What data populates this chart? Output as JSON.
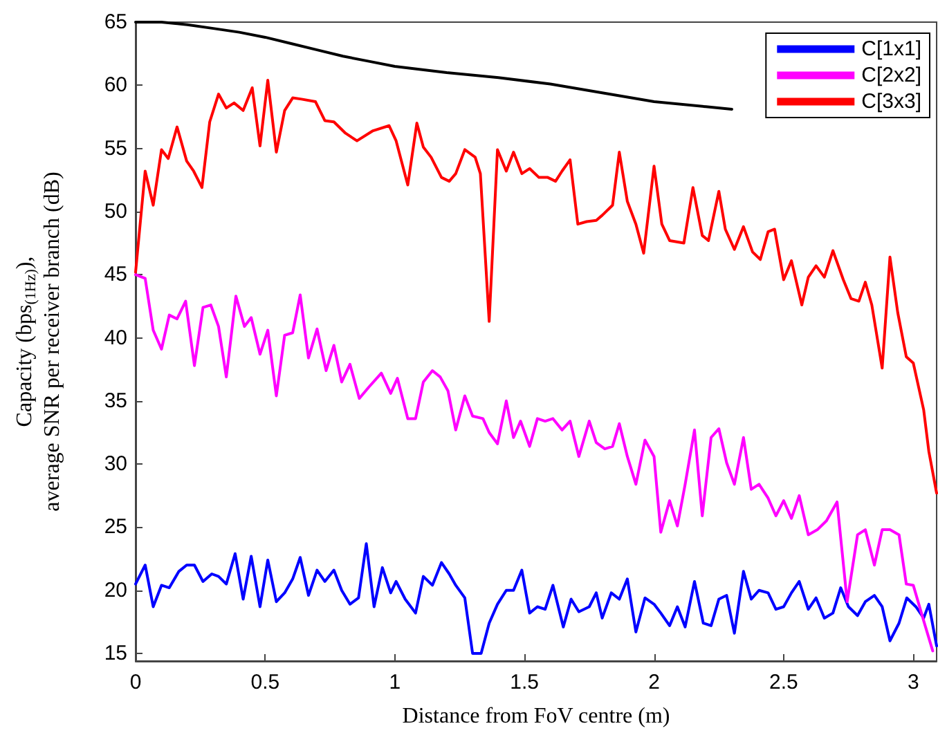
{
  "chart_data": {
    "type": "line",
    "xlabel": "Distance from FoV centre (m)",
    "ylabel": "Capacity (bps$_{(1Hz)}$),\naverage SNR per receiver branch (dB)",
    "xlim": [
      0,
      3.09
    ],
    "xticks": [
      0,
      0.5,
      1,
      1.5,
      2,
      2.5,
      3
    ],
    "ylim": [
      14.4,
      65
    ],
    "yticks": [
      15,
      20,
      25,
      30,
      35,
      40,
      45,
      50,
      55,
      60,
      65
    ],
    "grid": false,
    "legend": "top right",
    "marker": "none",
    "line_style": "solid",
    "series": [
      {
        "name": "C[1x1]",
        "color": "#0000ff",
        "x": [
          0,
          0.037,
          0.068,
          0.1,
          0.13,
          0.167,
          0.197,
          0.227,
          0.26,
          0.294,
          0.32,
          0.35,
          0.384,
          0.415,
          0.446,
          0.48,
          0.51,
          0.543,
          0.575,
          0.606,
          0.635,
          0.667,
          0.7,
          0.73,
          0.765,
          0.795,
          0.827,
          0.86,
          0.89,
          0.92,
          0.952,
          0.984,
          1.005,
          1.04,
          1.08,
          1.11,
          1.145,
          1.18,
          1.21,
          1.235,
          1.27,
          1.3,
          1.333,
          1.364,
          1.396,
          1.43,
          1.458,
          1.49,
          1.52,
          1.55,
          1.58,
          1.61,
          1.65,
          1.68,
          1.71,
          1.75,
          1.777,
          1.8,
          1.835,
          1.866,
          1.897,
          1.93,
          1.965,
          2.0,
          2.026,
          2.06,
          2.09,
          2.12,
          2.156,
          2.19,
          2.22,
          2.25,
          2.28,
          2.31,
          2.345,
          2.375,
          2.405,
          2.44,
          2.47,
          2.5,
          2.53,
          2.56,
          2.595,
          2.625,
          2.657,
          2.69,
          2.72,
          2.75,
          2.785,
          2.815,
          2.85,
          2.88,
          2.91,
          2.945,
          2.975,
          3.01,
          3.04,
          3.06,
          3.09
        ],
        "values": [
          20.5,
          22.0,
          18.7,
          20.4,
          20.2,
          21.5,
          22.0,
          22.0,
          20.7,
          21.3,
          21.1,
          20.5,
          22.9,
          19.3,
          22.7,
          18.7,
          22.4,
          19.1,
          19.8,
          20.9,
          22.6,
          19.6,
          21.6,
          20.7,
          21.6,
          20.0,
          18.9,
          19.4,
          23.7,
          18.7,
          21.8,
          19.8,
          20.7,
          19.3,
          18.2,
          21.1,
          20.4,
          22.2,
          21.3,
          20.4,
          19.4,
          15.0,
          15.0,
          17.4,
          18.9,
          20.0,
          20.0,
          21.6,
          18.2,
          18.7,
          18.5,
          20.4,
          17.1,
          19.3,
          18.3,
          18.7,
          19.8,
          17.8,
          19.8,
          19.3,
          20.9,
          16.7,
          19.4,
          18.9,
          18.2,
          17.2,
          18.7,
          17.1,
          20.7,
          17.4,
          17.2,
          19.3,
          19.6,
          16.6,
          21.5,
          19.3,
          20.0,
          19.8,
          18.5,
          18.7,
          19.8,
          20.7,
          18.5,
          19.4,
          17.8,
          18.2,
          20.2,
          18.7,
          18.0,
          19.1,
          19.6,
          18.7,
          16.0,
          17.4,
          19.4,
          18.7,
          17.8,
          18.9,
          15.6
        ]
      },
      {
        "name": "C[2x2]",
        "color": "#ff00ff",
        "x": [
          0,
          0.037,
          0.068,
          0.1,
          0.13,
          0.16,
          0.193,
          0.227,
          0.26,
          0.29,
          0.32,
          0.35,
          0.387,
          0.42,
          0.446,
          0.48,
          0.51,
          0.543,
          0.575,
          0.606,
          0.635,
          0.667,
          0.7,
          0.735,
          0.765,
          0.795,
          0.827,
          0.863,
          0.9,
          0.948,
          0.984,
          1.01,
          1.05,
          1.08,
          1.11,
          1.145,
          1.175,
          1.205,
          1.235,
          1.27,
          1.3,
          1.34,
          1.364,
          1.396,
          1.43,
          1.458,
          1.485,
          1.52,
          1.55,
          1.58,
          1.61,
          1.645,
          1.676,
          1.71,
          1.75,
          1.777,
          1.81,
          1.84,
          1.866,
          1.897,
          1.93,
          1.965,
          2.0,
          2.026,
          2.06,
          2.09,
          2.12,
          2.156,
          2.186,
          2.22,
          2.25,
          2.28,
          2.31,
          2.345,
          2.375,
          2.405,
          2.44,
          2.47,
          2.5,
          2.53,
          2.56,
          2.595,
          2.63,
          2.665,
          2.706,
          2.745,
          2.785,
          2.815,
          2.85,
          2.88,
          2.91,
          2.945,
          2.973,
          3.0,
          3.04,
          3.075
        ],
        "values": [
          45.0,
          44.7,
          40.6,
          39.1,
          41.8,
          41.5,
          42.9,
          37.8,
          42.4,
          42.6,
          40.9,
          36.9,
          43.3,
          40.9,
          41.6,
          38.7,
          40.6,
          35.4,
          40.2,
          40.4,
          43.4,
          38.4,
          40.7,
          37.4,
          39.4,
          36.5,
          37.9,
          35.2,
          36.1,
          37.2,
          35.6,
          36.8,
          33.6,
          33.6,
          36.5,
          37.4,
          36.9,
          35.8,
          32.7,
          35.4,
          33.8,
          33.6,
          32.5,
          31.6,
          35.0,
          32.1,
          33.4,
          31.4,
          33.6,
          33.4,
          33.6,
          32.7,
          33.4,
          30.6,
          33.4,
          31.7,
          31.2,
          31.4,
          33.2,
          30.6,
          28.4,
          31.9,
          30.6,
          24.6,
          27.1,
          25.1,
          28.4,
          32.7,
          25.9,
          32.1,
          32.8,
          30.1,
          28.4,
          32.1,
          28.0,
          28.4,
          27.3,
          25.9,
          27.1,
          25.7,
          27.5,
          24.4,
          24.8,
          25.5,
          27.0,
          19.1,
          24.4,
          24.8,
          22.0,
          24.8,
          24.8,
          24.4,
          20.5,
          20.4,
          17.6,
          15.2
        ]
      },
      {
        "name": "C[3x3]",
        "color": "#ff0000",
        "x": [
          0,
          0.037,
          0.068,
          0.1,
          0.126,
          0.16,
          0.197,
          0.224,
          0.256,
          0.286,
          0.32,
          0.35,
          0.38,
          0.415,
          0.45,
          0.48,
          0.51,
          0.543,
          0.575,
          0.606,
          0.64,
          0.694,
          0.73,
          0.765,
          0.81,
          0.854,
          0.916,
          0.978,
          1.005,
          1.05,
          1.085,
          1.11,
          1.14,
          1.18,
          1.21,
          1.235,
          1.27,
          1.31,
          1.33,
          1.364,
          1.396,
          1.43,
          1.458,
          1.49,
          1.52,
          1.556,
          1.59,
          1.62,
          1.645,
          1.676,
          1.706,
          1.74,
          1.777,
          1.8,
          1.84,
          1.866,
          1.897,
          1.93,
          1.96,
          2.0,
          2.03,
          2.06,
          2.115,
          2.15,
          2.186,
          2.21,
          2.25,
          2.275,
          2.31,
          2.345,
          2.38,
          2.41,
          2.44,
          2.465,
          2.5,
          2.53,
          2.57,
          2.595,
          2.625,
          2.657,
          2.69,
          2.73,
          2.76,
          2.79,
          2.815,
          2.84,
          2.88,
          2.91,
          2.94,
          2.973,
          3.0,
          3.04,
          3.06,
          3.09
        ],
        "values": [
          45.2,
          53.2,
          50.5,
          54.9,
          54.2,
          56.7,
          54.0,
          53.2,
          51.9,
          57.1,
          59.3,
          58.2,
          58.6,
          58.0,
          59.8,
          55.2,
          60.4,
          54.7,
          58.0,
          59.0,
          58.9,
          58.7,
          57.2,
          57.1,
          56.2,
          55.6,
          56.4,
          56.8,
          55.6,
          52.1,
          57.0,
          55.1,
          54.3,
          52.7,
          52.4,
          53.0,
          54.9,
          54.3,
          53.0,
          41.3,
          54.9,
          53.2,
          54.7,
          53.0,
          53.4,
          52.7,
          52.7,
          52.4,
          53.2,
          54.1,
          49.0,
          49.2,
          49.3,
          49.7,
          50.5,
          54.7,
          50.8,
          49.0,
          46.7,
          53.6,
          49.0,
          47.7,
          47.5,
          51.9,
          48.1,
          47.7,
          51.6,
          48.6,
          47.0,
          48.8,
          46.8,
          46.2,
          48.4,
          48.6,
          44.6,
          46.1,
          42.6,
          44.8,
          45.7,
          44.8,
          46.9,
          44.6,
          43.1,
          42.9,
          44.4,
          42.6,
          37.6,
          46.4,
          42.0,
          38.5,
          38.0,
          34.3,
          31.0,
          27.7
        ]
      },
      {
        "color": "#000000",
        "x": [
          0,
          0.1,
          0.2,
          0.3,
          0.4,
          0.5,
          0.6,
          0.7,
          0.8,
          0.9,
          1.0,
          1.2,
          1.4,
          1.6,
          1.8,
          2.0,
          2.2,
          2.3
        ],
        "values": [
          65.0,
          65.0,
          64.8,
          64.5,
          64.2,
          63.8,
          63.3,
          62.8,
          62.3,
          61.9,
          61.5,
          61.0,
          60.6,
          60.1,
          59.4,
          58.7,
          58.3,
          58.1
        ]
      }
    ]
  }
}
